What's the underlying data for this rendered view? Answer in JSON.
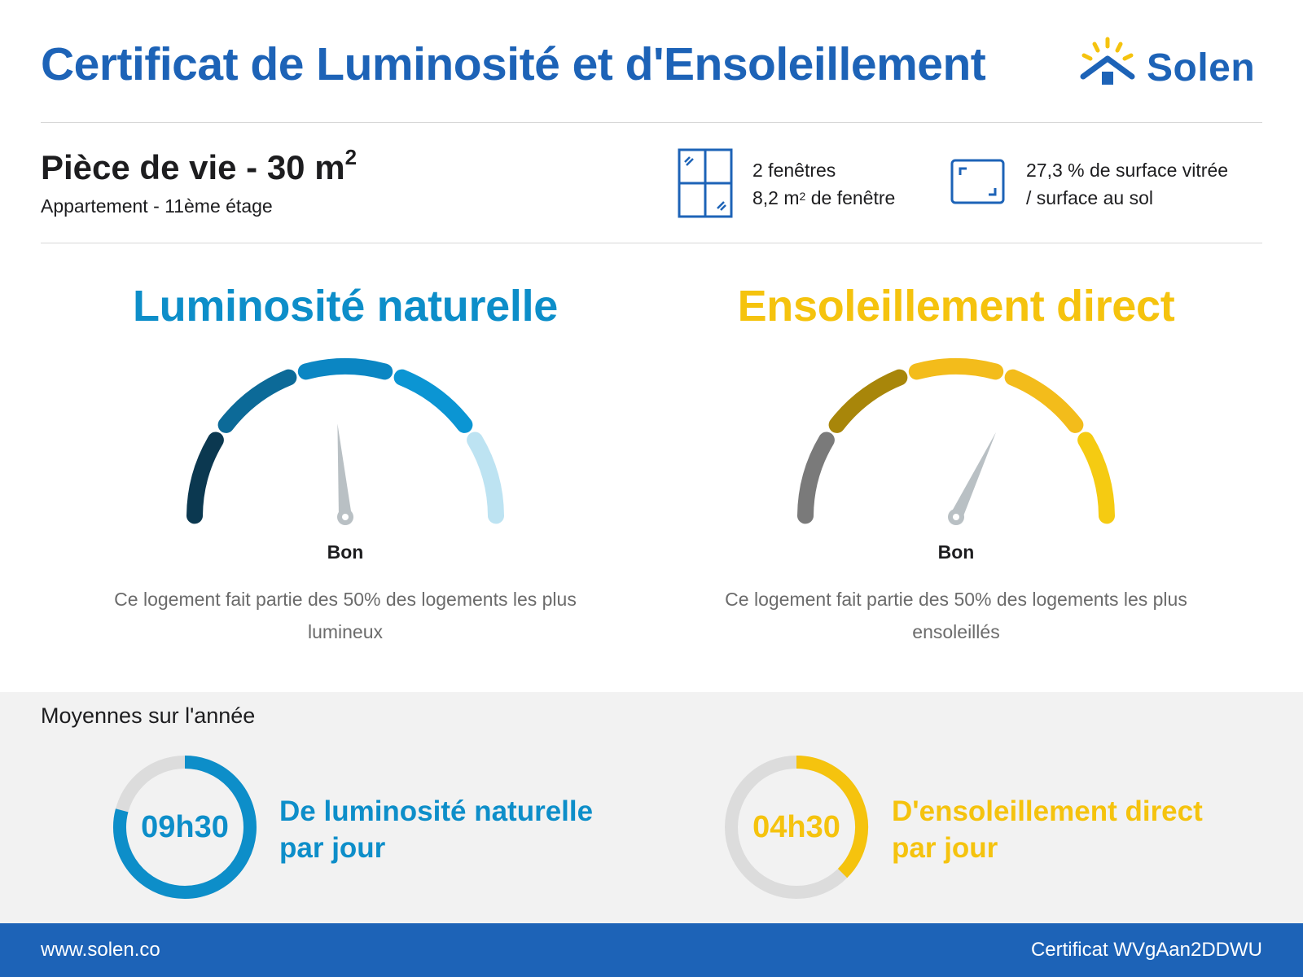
{
  "header": {
    "title": "Certificat de Luminosité et d'Ensoleillement",
    "logo_text": "Solen"
  },
  "room": {
    "title": "Pièce de vie - 30 m",
    "title_sup": "2",
    "subtitle": "Appartement - 11ème étage"
  },
  "windows": {
    "count_text": "2 fenêtres",
    "area_prefix": "8,2 m",
    "area_sup": "2",
    "area_suffix": " de fenêtre",
    "icon": "window-icon"
  },
  "glazing": {
    "line1": "27,3 % de surface vitrée",
    "line2": "/ surface au sol",
    "icon": "floor-plan-icon"
  },
  "luminosity": {
    "title": "Luminosité naturelle",
    "level": "Bon",
    "level_index": 3,
    "levels_total": 5,
    "description": "Ce logement fait partie des 50% des logements les plus lumineux",
    "color": "#0d8ec9",
    "segment_colors": [
      "#0b3850",
      "#0c6a98",
      "#0b86c3",
      "#0b95d3",
      "#bde3f2"
    ]
  },
  "sunshine": {
    "title": "Ensoleillement direct",
    "level": "Bon",
    "level_index": 4,
    "levels_total": 5,
    "description": "Ce logement fait partie des 50% des logements les plus ensoleillés",
    "color": "#f5c30e",
    "segment_colors": [
      "#7a7a7a",
      "#a8860a",
      "#f3bc1b",
      "#f3bc1b",
      "#f5cb12"
    ]
  },
  "annual": {
    "title": "Moyennes sur l'année",
    "luminosity": {
      "value": "09h30",
      "label_line1": "De luminosité naturelle",
      "label_line2": "par jour",
      "hours": 9.5,
      "color": "#0d8ec9"
    },
    "sunshine": {
      "value": "04h30",
      "label_line1": "D'ensoleillement direct",
      "label_line2": "par jour",
      "hours": 4.5,
      "color": "#f5c30e"
    }
  },
  "footer": {
    "website": "www.solen.co",
    "certificate": "Certificat WVgAan2DDWU"
  }
}
